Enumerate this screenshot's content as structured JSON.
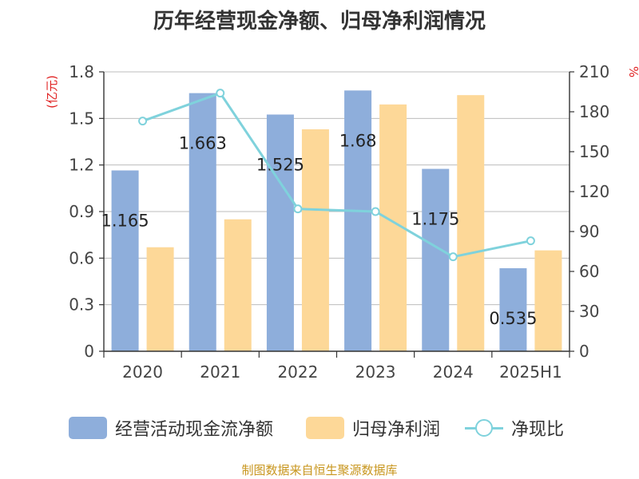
{
  "title": "历年经营现金净额、归母净利润情况",
  "source": "制图数据来自恒生聚源数据库",
  "colors": {
    "bar1": "#8eaedb",
    "bar2": "#fdd898",
    "line": "#7fd2dc",
    "unit": "#e02020",
    "axis": "#333333",
    "grid": "#bdbdbd",
    "tick": "#444444"
  },
  "chart_data": {
    "type": "bar",
    "categories": [
      "2020",
      "2021",
      "2022",
      "2023",
      "2024",
      "2025H1"
    ],
    "left_unit": "(亿元)",
    "right_unit": "%",
    "left_axis": {
      "min": 0,
      "max": 1.8,
      "ticks": [
        "0",
        "0.3",
        "0.6",
        "0.9",
        "1.2",
        "1.5",
        "1.8"
      ]
    },
    "right_axis": {
      "min": 0,
      "max": 210,
      "ticks": [
        "0",
        "30",
        "60",
        "90",
        "120",
        "150",
        "180",
        "210"
      ]
    },
    "grid": true,
    "legend_position": "bottom",
    "series": [
      {
        "name": "经营活动现金流净额",
        "type": "bar",
        "axis": "left",
        "values": [
          1.165,
          1.663,
          1.525,
          1.68,
          1.175,
          0.535
        ],
        "labels": [
          "1.165",
          "1.663",
          "1.525",
          "1.68",
          "1.175",
          "0.535"
        ]
      },
      {
        "name": "归母净利润",
        "type": "bar",
        "axis": "left",
        "values": [
          0.67,
          0.85,
          1.43,
          1.59,
          1.65,
          0.65
        ]
      },
      {
        "name": "净现比",
        "type": "line",
        "axis": "right",
        "values": [
          173,
          194,
          107,
          105,
          71,
          83
        ]
      }
    ]
  }
}
